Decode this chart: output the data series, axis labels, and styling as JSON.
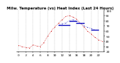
{
  "title": "Milw. Temperature (vs) Heat Index (Last 24 Hours)",
  "outdoor_temp_x": [
    0,
    1,
    2,
    3,
    4,
    5,
    6,
    7,
    8,
    9,
    10,
    11,
    12,
    13,
    14,
    15,
    16,
    17,
    18,
    19,
    20,
    21,
    22,
    23
  ],
  "outdoor_temp_y": [
    32,
    30,
    28,
    27,
    33,
    31,
    30,
    38,
    50,
    60,
    68,
    75,
    82,
    88,
    90,
    87,
    83,
    75,
    68,
    60,
    54,
    48,
    43,
    40
  ],
  "heat_index_segments": [
    {
      "x": [
        11,
        12,
        13,
        14
      ],
      "y": [
        72,
        72,
        72,
        72
      ]
    },
    {
      "x": [
        14,
        15,
        16
      ],
      "y": [
        80,
        80,
        80
      ]
    },
    {
      "x": [
        16,
        17,
        18
      ],
      "y": [
        75,
        75,
        75
      ]
    },
    {
      "x": [
        20,
        21,
        22
      ],
      "y": [
        62,
        62,
        62
      ]
    }
  ],
  "heat_index_dots_x": [
    11,
    12,
    13,
    14,
    15,
    16,
    17,
    18,
    19,
    20,
    21
  ],
  "heat_index_dots_y": [
    72,
    74,
    76,
    80,
    82,
    79,
    75,
    70,
    67,
    65,
    62
  ],
  "ylim_min": 20,
  "ylim_max": 100,
  "yticks": [
    20,
    30,
    40,
    50,
    60,
    70,
    80,
    90,
    100
  ],
  "ytick_labels": [
    "20",
    "30",
    "40",
    "50",
    "60",
    "70",
    "80",
    "90",
    "100"
  ],
  "xtick_positions": [
    0,
    2,
    4,
    6,
    8,
    10,
    12,
    14,
    16,
    18,
    20,
    22
  ],
  "xtick_labels": [
    "0",
    "2",
    "4",
    "6",
    "8",
    "10",
    "12",
    "14",
    "16",
    "18",
    "20",
    "22"
  ],
  "temp_color": "#cc0000",
  "heat_color": "#0000bb",
  "bg_color": "#ffffff",
  "plot_bg_color": "#ffffff",
  "grid_color": "#999999",
  "grid_positions": [
    0,
    2,
    4,
    6,
    8,
    10,
    12,
    14,
    16,
    18,
    20,
    22
  ],
  "title_fontsize": 4.0,
  "tick_fontsize": 3.2,
  "marker_size": 1.5
}
